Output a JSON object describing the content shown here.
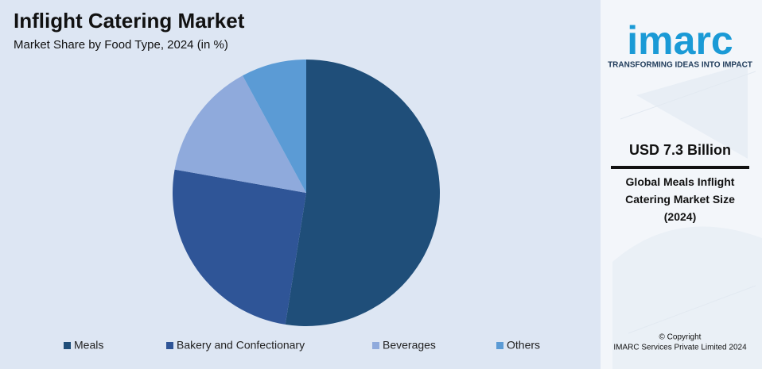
{
  "chart_data": {
    "type": "pie",
    "title": "Inflight Catering Market",
    "subtitle": "Market Share by Food Type, 2024 (in %)",
    "categories": [
      "Meals",
      "Bakery and Confectionary",
      "Beverages",
      "Others"
    ],
    "values": [
      52.5,
      25.3,
      14.3,
      7.9
    ],
    "colors": [
      "#1f4e79",
      "#2f5597",
      "#8faadc",
      "#5b9bd5"
    ],
    "legend": "bottom"
  },
  "sidebar": {
    "logo": "imarc",
    "tagline": "TRANSFORMING IDEAS INTO IMPACT",
    "headline": "USD 7.3 Billion",
    "description": "Global Meals Inflight Catering Market Size (2024)",
    "copyright": "© Copyright",
    "company": "IMARC Services Private Limited 2024"
  }
}
